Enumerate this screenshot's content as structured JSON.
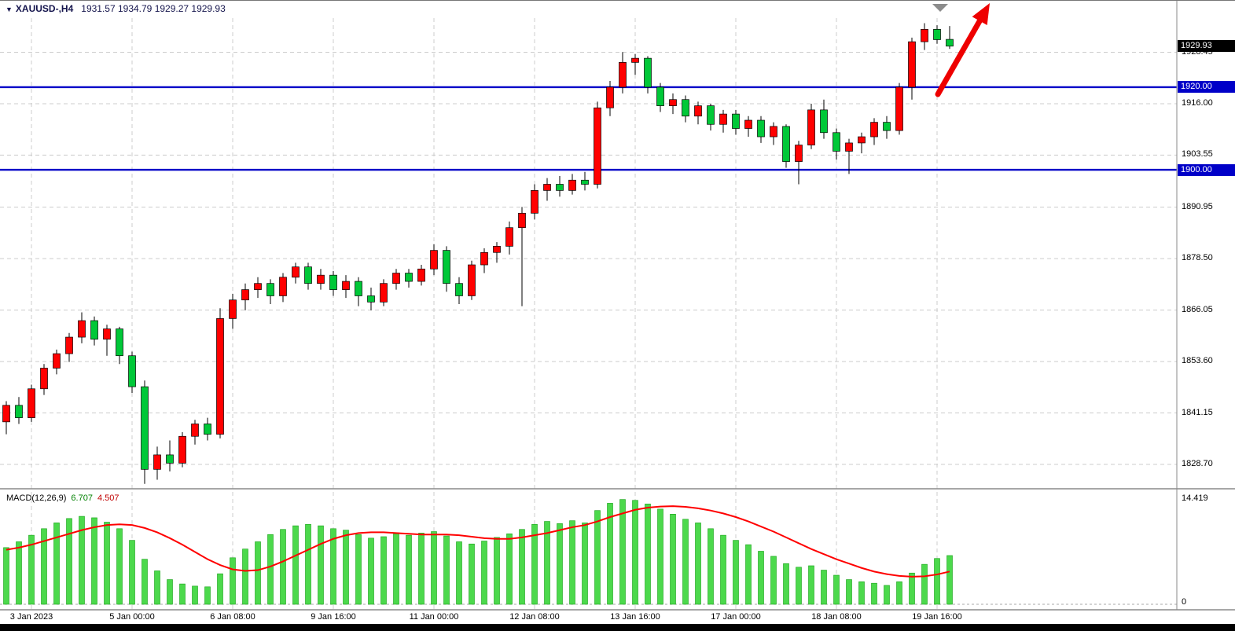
{
  "header": {
    "marker_icon": "▼",
    "symbol_timeframe": "XAUUSD-,H4",
    "ohlc": "1931.57 1934.79 1929.27 1929.93"
  },
  "price_axis": {
    "ticks": [
      "1928.45",
      "1916.00",
      "1903.55",
      "1890.95",
      "1878.50",
      "1866.05",
      "1853.60",
      "1841.15",
      "1828.70"
    ],
    "current_price": "1929.93",
    "hlines": [
      {
        "label": "1920.00",
        "value": 1920.0
      },
      {
        "label": "1900.00",
        "value": 1900.0
      }
    ]
  },
  "time_axis": {
    "labels": [
      {
        "text": "3 Jan 2023",
        "bar": 2
      },
      {
        "text": "5 Jan 00:00",
        "bar": 10
      },
      {
        "text": "6 Jan 08:00",
        "bar": 18
      },
      {
        "text": "9 Jan 16:00",
        "bar": 26
      },
      {
        "text": "11 Jan 00:00",
        "bar": 34
      },
      {
        "text": "12 Jan 08:00",
        "bar": 42
      },
      {
        "text": "13 Jan 16:00",
        "bar": 50
      },
      {
        "text": "17 Jan 00:00",
        "bar": 58
      },
      {
        "text": "18 Jan 08:00",
        "bar": 66
      },
      {
        "text": "19 Jan 16:00",
        "bar": 74
      }
    ]
  },
  "macd_panel": {
    "title": "MACD(12,26,9)",
    "main_value": "6.707",
    "signal_value": "4.507",
    "axis_max": "14.419",
    "axis_min": "0"
  },
  "colors": {
    "candle_up": "#ff0000",
    "candle_down": "#00c838",
    "macd_histogram": "#4cd94c",
    "macd_signal": "#ff0000",
    "level_line": "#0000c8",
    "current_price_badge": "#000000",
    "arrow": "#ee0000",
    "header_text": "#15154d"
  },
  "chart_data": {
    "type": "candlestick",
    "symbol": "XAUUSD-",
    "timeframe": "H4",
    "title": "XAUUSD-,H4 1931.57 1934.79 1929.27 1929.93",
    "ylim": [
      1823,
      1937
    ],
    "grid": true,
    "horizontal_levels": [
      1920.0,
      1900.0
    ],
    "last_bar": {
      "open": 1931.57,
      "high": 1934.79,
      "low": 1929.27,
      "close": 1929.93
    },
    "candles_ohlc": [
      [
        1839.0,
        1844.0,
        1836.0,
        1843.0
      ],
      [
        1843.0,
        1845.0,
        1838.5,
        1840.0
      ],
      [
        1840.0,
        1848.0,
        1839.0,
        1847.0
      ],
      [
        1847.0,
        1853.0,
        1845.5,
        1852.0
      ],
      [
        1852.0,
        1856.5,
        1850.5,
        1855.5
      ],
      [
        1855.5,
        1860.5,
        1853.5,
        1859.5
      ],
      [
        1859.5,
        1865.5,
        1858.0,
        1863.5
      ],
      [
        1863.5,
        1864.5,
        1857.5,
        1859.0
      ],
      [
        1859.0,
        1862.5,
        1855.0,
        1861.5
      ],
      [
        1861.5,
        1862.0,
        1853.0,
        1855.0
      ],
      [
        1855.0,
        1856.0,
        1846.0,
        1847.5
      ],
      [
        1847.5,
        1849.0,
        1824.0,
        1827.5
      ],
      [
        1827.5,
        1833.0,
        1825.0,
        1831.0
      ],
      [
        1831.0,
        1834.5,
        1827.0,
        1829.0
      ],
      [
        1829.0,
        1836.5,
        1828.0,
        1835.5
      ],
      [
        1835.5,
        1839.5,
        1833.5,
        1838.5
      ],
      [
        1838.5,
        1840.0,
        1834.5,
        1836.0
      ],
      [
        1836.0,
        1866.5,
        1835.0,
        1864.0
      ],
      [
        1864.0,
        1870.0,
        1861.5,
        1868.5
      ],
      [
        1868.5,
        1872.5,
        1866.0,
        1871.0
      ],
      [
        1871.0,
        1874.0,
        1869.0,
        1872.5
      ],
      [
        1872.5,
        1873.5,
        1867.5,
        1869.5
      ],
      [
        1869.5,
        1875.0,
        1868.0,
        1874.0
      ],
      [
        1874.0,
        1877.5,
        1872.5,
        1876.5
      ],
      [
        1876.5,
        1877.5,
        1871.0,
        1872.5
      ],
      [
        1872.5,
        1876.0,
        1871.0,
        1874.5
      ],
      [
        1874.5,
        1875.5,
        1869.5,
        1871.0
      ],
      [
        1871.0,
        1874.5,
        1869.0,
        1873.0
      ],
      [
        1873.0,
        1874.0,
        1867.0,
        1869.5
      ],
      [
        1869.5,
        1871.5,
        1866.0,
        1868.0
      ],
      [
        1868.0,
        1873.5,
        1867.0,
        1872.5
      ],
      [
        1872.5,
        1876.0,
        1871.0,
        1875.0
      ],
      [
        1875.0,
        1876.0,
        1871.5,
        1873.0
      ],
      [
        1873.0,
        1877.0,
        1872.0,
        1876.0
      ],
      [
        1876.0,
        1882.0,
        1874.5,
        1880.5
      ],
      [
        1880.5,
        1881.5,
        1870.5,
        1872.5
      ],
      [
        1872.5,
        1874.0,
        1867.5,
        1869.5
      ],
      [
        1869.5,
        1878.0,
        1868.5,
        1877.0
      ],
      [
        1877.0,
        1881.0,
        1875.0,
        1880.0
      ],
      [
        1880.0,
        1882.5,
        1877.5,
        1881.5
      ],
      [
        1881.5,
        1887.5,
        1879.5,
        1886.0
      ],
      [
        1886.0,
        1891.0,
        1867.0,
        1889.5
      ],
      [
        1889.5,
        1896.5,
        1888.0,
        1895.0
      ],
      [
        1895.0,
        1898.0,
        1892.5,
        1896.5
      ],
      [
        1896.5,
        1898.5,
        1893.5,
        1895.0
      ],
      [
        1895.0,
        1899.0,
        1894.0,
        1897.5
      ],
      [
        1897.5,
        1899.5,
        1895.0,
        1896.5
      ],
      [
        1896.5,
        1916.5,
        1895.5,
        1915.0
      ],
      [
        1915.0,
        1921.5,
        1913.0,
        1920.0
      ],
      [
        1920.0,
        1928.5,
        1918.5,
        1926.0
      ],
      [
        1926.0,
        1928.0,
        1923.0,
        1927.0
      ],
      [
        1927.0,
        1927.5,
        1918.5,
        1920.0
      ],
      [
        1920.0,
        1921.0,
        1914.0,
        1915.5
      ],
      [
        1915.5,
        1918.5,
        1913.5,
        1917.0
      ],
      [
        1917.0,
        1918.0,
        1911.5,
        1913.0
      ],
      [
        1913.0,
        1916.5,
        1911.0,
        1915.5
      ],
      [
        1915.5,
        1916.0,
        1909.5,
        1911.0
      ],
      [
        1911.0,
        1914.5,
        1909.0,
        1913.5
      ],
      [
        1913.5,
        1914.5,
        1908.5,
        1910.0
      ],
      [
        1910.0,
        1913.0,
        1908.0,
        1912.0
      ],
      [
        1912.0,
        1913.0,
        1906.5,
        1908.0
      ],
      [
        1908.0,
        1911.5,
        1906.0,
        1910.5
      ],
      [
        1910.5,
        1911.0,
        1900.5,
        1902.0
      ],
      [
        1902.0,
        1907.0,
        1896.5,
        1906.0
      ],
      [
        1906.0,
        1916.0,
        1905.0,
        1914.5
      ],
      [
        1914.5,
        1917.0,
        1907.5,
        1909.0
      ],
      [
        1909.0,
        1910.0,
        1902.5,
        1904.5
      ],
      [
        1904.5,
        1907.5,
        1899.0,
        1906.5
      ],
      [
        1906.5,
        1909.0,
        1904.0,
        1908.0
      ],
      [
        1908.0,
        1912.5,
        1906.0,
        1911.5
      ],
      [
        1911.5,
        1913.0,
        1907.5,
        1909.5
      ],
      [
        1909.5,
        1921.0,
        1908.5,
        1920.0
      ],
      [
        1920.0,
        1932.0,
        1917.0,
        1931.0
      ],
      [
        1931.0,
        1935.5,
        1929.0,
        1934.0
      ],
      [
        1934.0,
        1935.0,
        1930.5,
        1931.5
      ],
      [
        1931.57,
        1934.79,
        1929.27,
        1929.93
      ]
    ],
    "macd": {
      "params": "12,26,9",
      "last_main": 6.707,
      "last_signal": 4.507,
      "axis_max": 14.419,
      "axis_min": 0,
      "histogram": [
        7.8,
        8.6,
        9.5,
        10.4,
        11.2,
        11.8,
        12.1,
        11.9,
        11.3,
        10.4,
        8.8,
        6.2,
        4.6,
        3.4,
        2.8,
        2.5,
        2.4,
        4.2,
        6.4,
        7.6,
        8.6,
        9.6,
        10.3,
        10.8,
        11.0,
        10.8,
        10.4,
        10.2,
        9.6,
        9.1,
        9.3,
        9.7,
        9.5,
        9.8,
        10.0,
        9.4,
        8.6,
        8.3,
        8.7,
        9.2,
        9.7,
        10.3,
        11.0,
        11.4,
        11.1,
        11.5,
        11.2,
        12.9,
        13.9,
        14.419,
        14.3,
        13.8,
        13.1,
        12.4,
        11.7,
        11.2,
        10.4,
        9.5,
        8.8,
        8.2,
        7.3,
        6.6,
        5.6,
        5.1,
        5.3,
        4.7,
        4.0,
        3.4,
        3.1,
        2.9,
        2.6,
        3.1,
        4.3,
        5.5,
        6.3,
        6.707
      ],
      "signal": [
        7.5,
        7.8,
        8.2,
        8.7,
        9.2,
        9.7,
        10.2,
        10.6,
        10.9,
        11.0,
        10.9,
        10.5,
        9.9,
        9.1,
        8.2,
        7.2,
        6.2,
        5.4,
        4.8,
        4.6,
        4.7,
        5.2,
        5.9,
        6.7,
        7.5,
        8.3,
        9.0,
        9.5,
        9.8,
        9.9,
        9.9,
        9.8,
        9.7,
        9.6,
        9.6,
        9.6,
        9.5,
        9.3,
        9.1,
        9.0,
        9.0,
        9.2,
        9.5,
        9.8,
        10.2,
        10.6,
        10.9,
        11.4,
        12.0,
        12.5,
        13.0,
        13.3,
        13.45,
        13.5,
        13.4,
        13.2,
        12.9,
        12.5,
        12.0,
        11.4,
        10.7,
        10.0,
        9.2,
        8.4,
        7.6,
        6.9,
        6.2,
        5.6,
        5.0,
        4.5,
        4.15,
        3.9,
        3.8,
        3.85,
        4.1,
        4.507
      ]
    }
  }
}
